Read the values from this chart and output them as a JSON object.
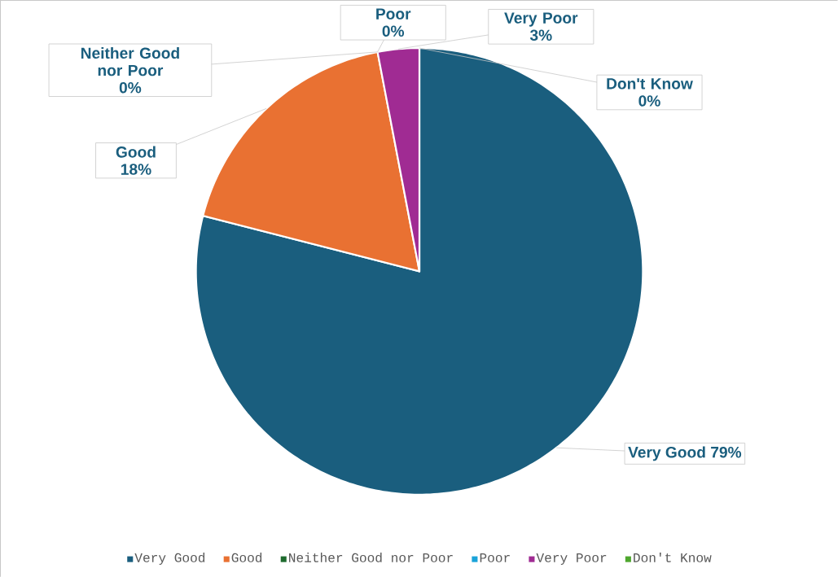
{
  "chart_data": {
    "type": "pie",
    "categories": [
      "Very Good",
      "Good",
      "Neither Good nor Poor",
      "Poor",
      "Very Poor",
      "Don't Know"
    ],
    "values": [
      79,
      18,
      0,
      0,
      3,
      0
    ],
    "colors": [
      "#1a5e7e",
      "#e97132",
      "#1e6b2e",
      "#1aa3d9",
      "#a02b93",
      "#4ea72e"
    ],
    "value_labels": [
      "79%",
      "18%",
      "0%",
      "0%",
      "3%",
      "0%"
    ],
    "legend": "bottom"
  }
}
